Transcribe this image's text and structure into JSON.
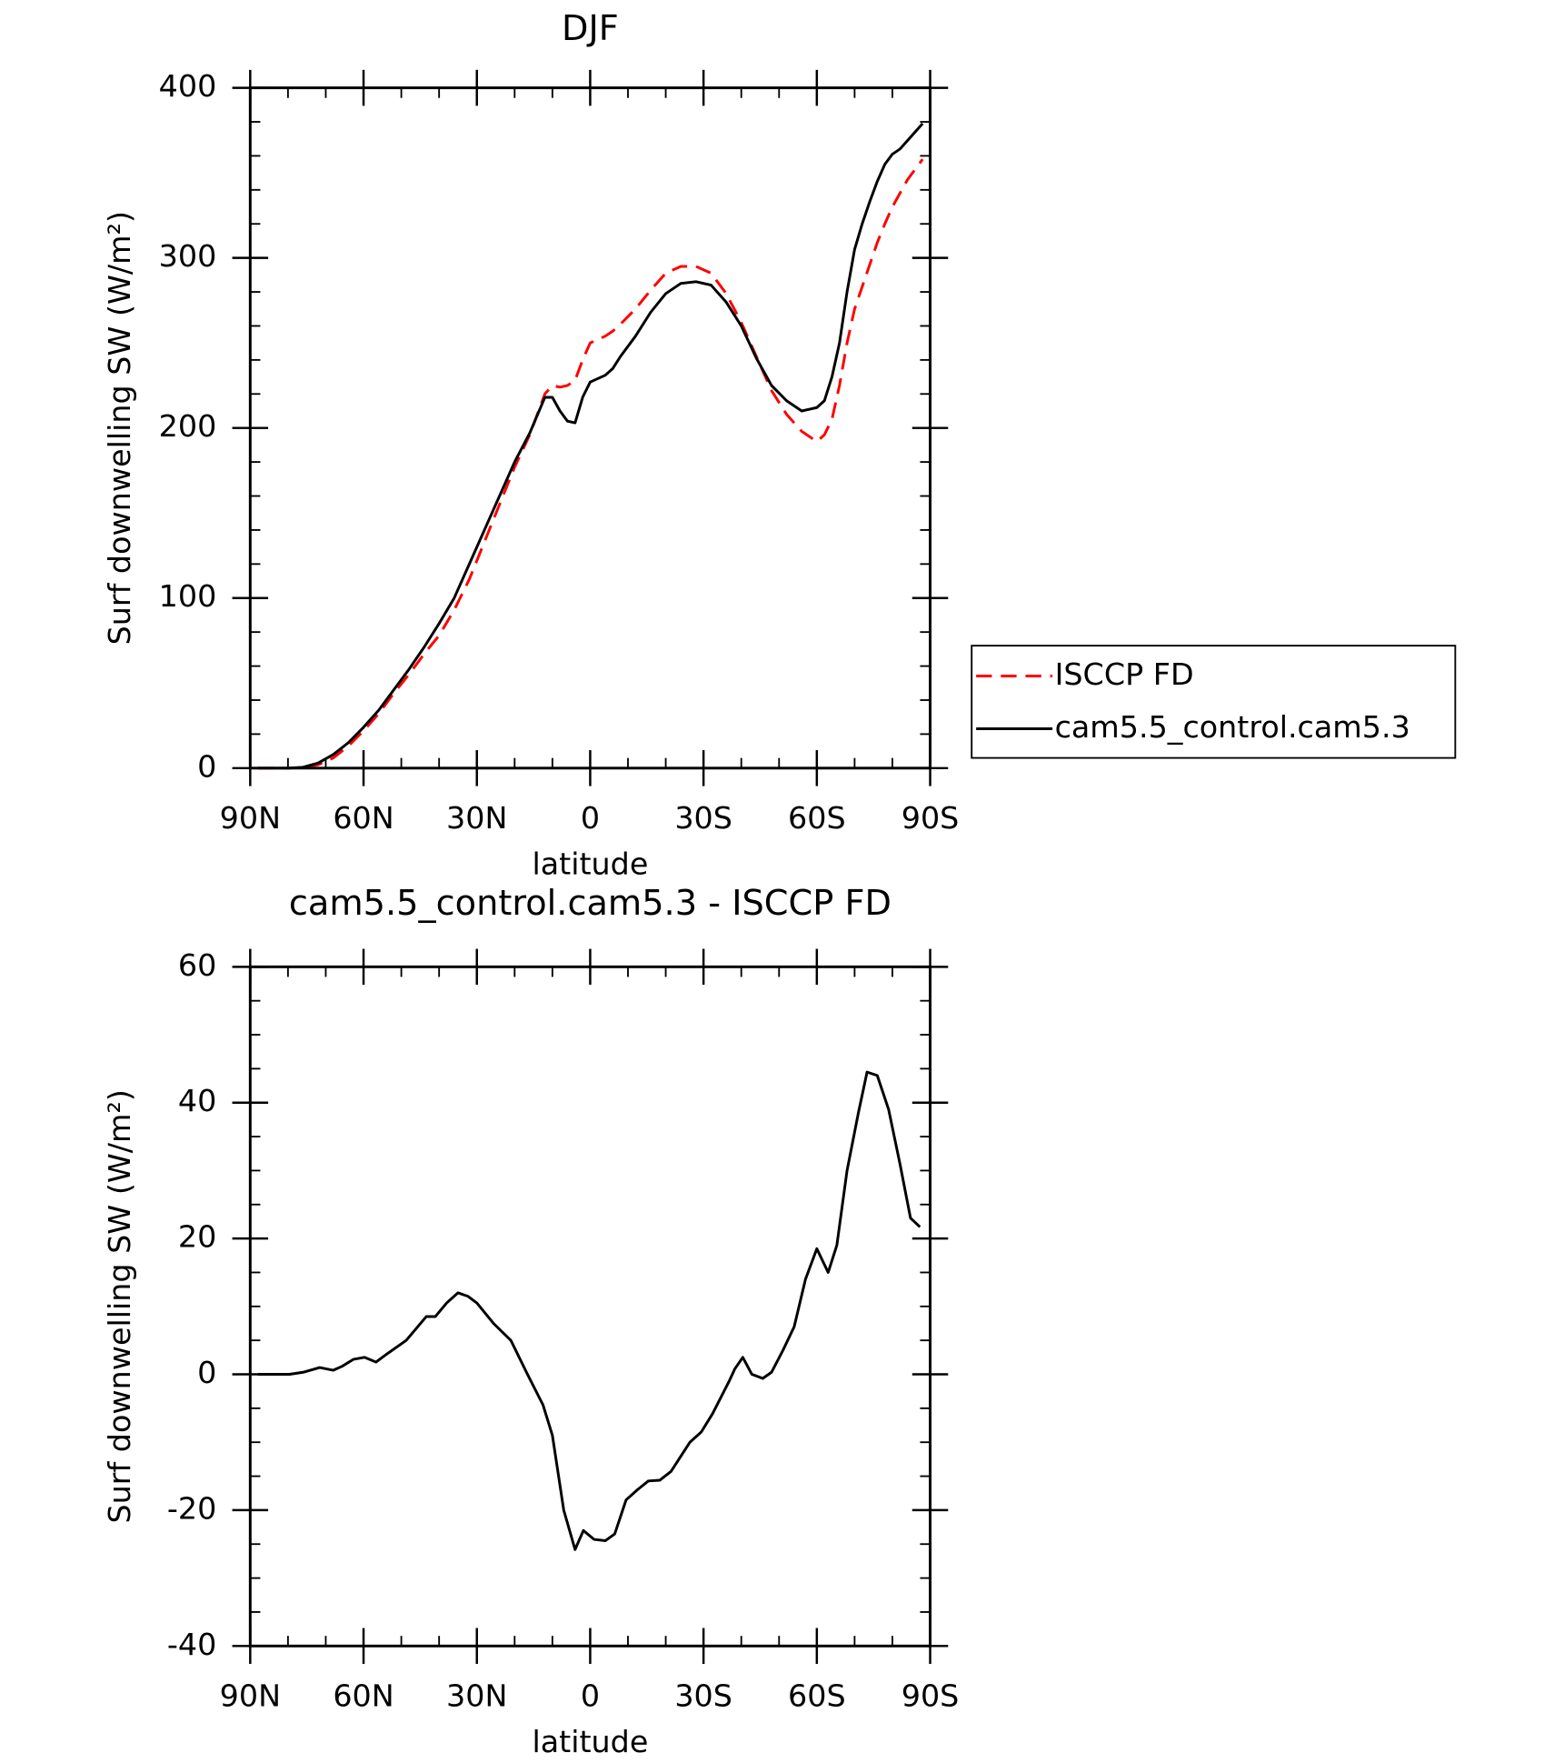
{
  "chart_data": [
    {
      "type": "line",
      "title": "DJF",
      "x_label": "latitude",
      "y_label": "Surf downwelling SW (W/m²)",
      "legend": "right",
      "grid": false,
      "x": [
        88,
        84,
        80,
        76,
        72,
        68,
        64,
        60,
        56,
        52,
        48,
        44,
        40,
        36,
        32,
        28,
        24,
        20,
        16,
        12,
        10,
        8,
        6,
        4,
        2,
        0,
        -2,
        -4,
        -6,
        -8,
        -12,
        -16,
        -20,
        -24,
        -28,
        -32,
        -36,
        -40,
        -44,
        -48,
        -52,
        -56,
        -60,
        -62,
        -64,
        -66,
        -68,
        -70,
        -72,
        -74,
        -76,
        -78,
        -80,
        -82,
        -84,
        -86,
        -88
      ],
      "series": [
        {
          "name": "ISCCP FD",
          "color": "#ff0000",
          "dashed": true,
          "values": [
            0,
            0,
            0,
            0.3,
            2,
            6,
            13,
            22,
            32,
            44,
            55,
            67,
            78,
            93,
            111,
            133,
            155,
            177,
            196,
            220,
            225,
            224,
            225,
            228,
            240,
            250,
            252,
            254,
            257,
            261,
            270,
            281,
            291,
            295,
            295,
            291,
            279,
            262,
            242,
            222,
            208,
            198,
            192,
            196,
            205,
            225,
            250,
            270,
            283,
            296,
            309,
            320,
            330,
            338,
            346,
            352,
            358
          ]
        },
        {
          "name": "cam5.5_control.cam5.3",
          "color": "#000000",
          "dashed": false,
          "values": [
            0,
            0,
            0,
            0.5,
            3,
            8,
            15,
            24,
            34,
            46,
            58,
            71,
            85,
            100,
            120,
            140,
            160,
            180,
            197,
            218,
            218,
            210,
            204,
            203,
            218,
            227,
            229,
            231,
            235,
            242,
            254,
            268,
            279,
            285,
            286,
            284,
            274,
            260,
            241,
            225,
            216,
            210,
            212,
            216,
            230,
            250,
            280,
            305,
            320,
            333,
            345,
            355,
            361,
            364,
            369,
            374,
            379
          ]
        }
      ],
      "xlim": [
        90,
        -90
      ],
      "xticks": [
        {
          "value": 90,
          "label": "90N"
        },
        {
          "value": 60,
          "label": "60N"
        },
        {
          "value": 30,
          "label": "30N"
        },
        0,
        {
          "value": -30,
          "label": "30S"
        },
        {
          "value": -60,
          "label": "60S"
        },
        {
          "value": -90,
          "label": "90S"
        }
      ],
      "xminorticks": [
        80,
        70,
        50,
        40,
        20,
        10,
        -10,
        -20,
        -40,
        -50,
        -70,
        -80
      ],
      "ylim": [
        0,
        400
      ],
      "yticks": [
        0,
        100,
        200,
        300,
        400
      ],
      "yminorticks": [
        20,
        40,
        60,
        80,
        120,
        140,
        160,
        180,
        220,
        240,
        260,
        280,
        320,
        340,
        360,
        380
      ]
    },
    {
      "type": "line",
      "title": "cam5.5_control.cam5.3 - ISCCP FD",
      "x_label": "latitude",
      "y_label": "Surf downwelling SW (W/m²)",
      "grid": false,
      "x": [
        88,
        79.6,
        76,
        71.6,
        68,
        65.6,
        62.7,
        59.7,
        56.7,
        53.8,
        48.7,
        43.4,
        41,
        38,
        35,
        32.4,
        30,
        25.6,
        21,
        16.6,
        12.5,
        10,
        7,
        4,
        1.8,
        -1,
        -4,
        -6.5,
        -9.5,
        -12.5,
        -15.4,
        -18.4,
        -21.4,
        -26.4,
        -29.4,
        -32.4,
        -36.8,
        -38.3,
        -40.4,
        -42.8,
        -45.7,
        -48,
        -51,
        -54,
        -57,
        -60,
        -63,
        -65.3,
        -68,
        -71,
        -73.3,
        -76,
        -79,
        -82,
        -84.8,
        -87.3
      ],
      "values": [
        0,
        0,
        0.3,
        1,
        0.6,
        1.2,
        2.2,
        2.5,
        1.8,
        3,
        5,
        8.5,
        8.5,
        10.5,
        12,
        11.5,
        10.5,
        7.5,
        5,
        0,
        -4.5,
        -9,
        -20,
        -25.8,
        -23,
        -24.3,
        -24.5,
        -23.5,
        -18.5,
        -17,
        -15.7,
        -15.6,
        -14.3,
        -10,
        -8.5,
        -5.8,
        -1,
        0.8,
        2.5,
        0,
        -0.6,
        0.3,
        3.5,
        7,
        14,
        18.5,
        15,
        19,
        30,
        38.5,
        44.5,
        44,
        39,
        31,
        23,
        21.7
      ],
      "color": "#000000",
      "xlim": [
        90,
        -90
      ],
      "xticks": [
        {
          "value": 90,
          "label": "90N"
        },
        {
          "value": 60,
          "label": "60N"
        },
        {
          "value": 30,
          "label": "30N"
        },
        0,
        {
          "value": -30,
          "label": "30S"
        },
        {
          "value": -60,
          "label": "60S"
        },
        {
          "value": -90,
          "label": "90S"
        }
      ],
      "xminorticks": [
        80,
        70,
        50,
        40,
        20,
        10,
        -10,
        -20,
        -40,
        -50,
        -70,
        -80
      ],
      "ylim": [
        -40,
        60
      ],
      "yticks": [
        -40,
        -20,
        0,
        20,
        40,
        60
      ],
      "yminorticks": [
        -35,
        -30,
        -25,
        -15,
        -10,
        -5,
        5,
        10,
        15,
        25,
        30,
        35,
        45,
        50,
        55
      ]
    }
  ]
}
